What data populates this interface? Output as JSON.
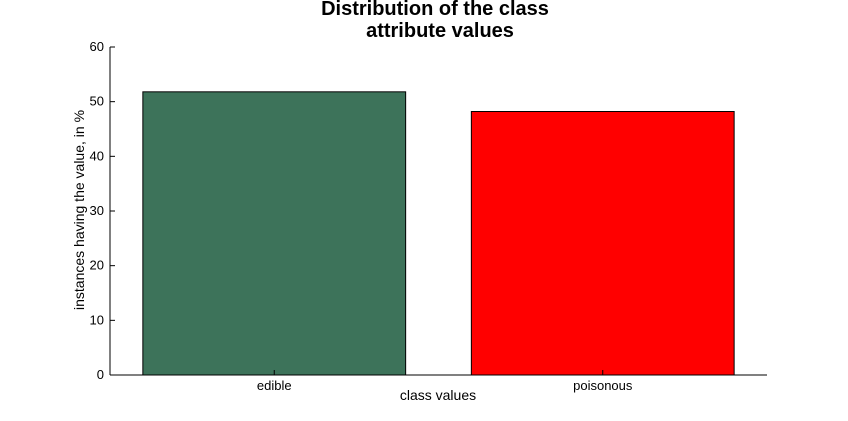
{
  "chart_data": {
    "type": "bar",
    "title_lines": [
      "Distribution of the class",
      "attribute values"
    ],
    "xlabel": "class values",
    "ylabel": "instances having the value, in %",
    "categories": [
      "edible",
      "poisonous"
    ],
    "values": [
      51.8,
      48.2
    ],
    "ylim": [
      0,
      60
    ],
    "yticks": [
      0,
      10,
      20,
      30,
      40,
      50,
      60
    ],
    "bar_colors": [
      "#3d735a",
      "#ff0000"
    ],
    "bar_edge_color": "#000000",
    "grid": false,
    "legend": "none"
  }
}
